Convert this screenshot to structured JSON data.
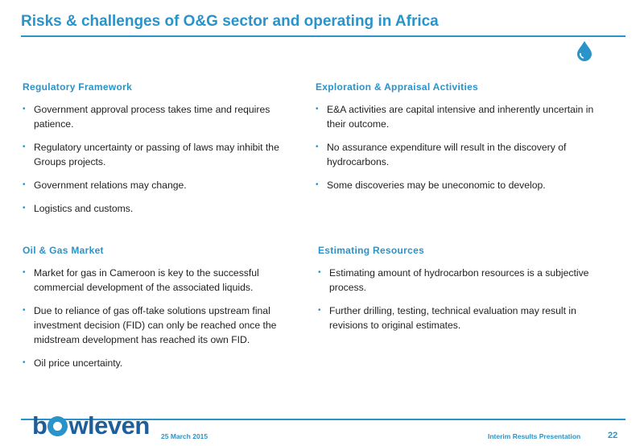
{
  "title": "Risks & challenges of O&G sector and operating in Africa",
  "colors": {
    "accent": "#2a93c9",
    "logo": "#1e5f9a"
  },
  "icons": {
    "drop": "water-drop-icon",
    "bullet": "bullet-icon"
  },
  "sections": [
    {
      "title": "Regulatory Framework",
      "bullets": [
        "Government approval process takes time and requires patience.",
        "Regulatory uncertainty or passing of laws may inhibit the Groups projects.",
        "Government relations may change.",
        "Logistics and customs."
      ]
    },
    {
      "title": "Exploration & Appraisal Activities",
      "bullets": [
        "E&A activities are capital intensive and inherently uncertain in their outcome.",
        "No assurance expenditure will result in the discovery of hydrocarbons.",
        "Some discoveries may be uneconomic to develop."
      ]
    },
    {
      "title": "Oil & Gas Market",
      "bullets": [
        "Market for gas in Cameroon is key to the successful commercial development of the associated liquids.",
        "Due to reliance of gas off-take solutions upstream final investment decision (FID) can only be reached once the midstream development has reached its own FID.",
        "Oil price uncertainty."
      ]
    },
    {
      "title": "Estimating Resources",
      "bullets": [
        "Estimating amount of hydrocarbon resources is a subjective process.",
        "Further drilling, testing, technical evaluation may result in revisions to original estimates."
      ]
    }
  ],
  "footer": {
    "logo_prefix": "b",
    "logo_suffix": "wleven",
    "date": "25 March 2015",
    "presentation": "Interim Results Presentation",
    "page": "22"
  }
}
